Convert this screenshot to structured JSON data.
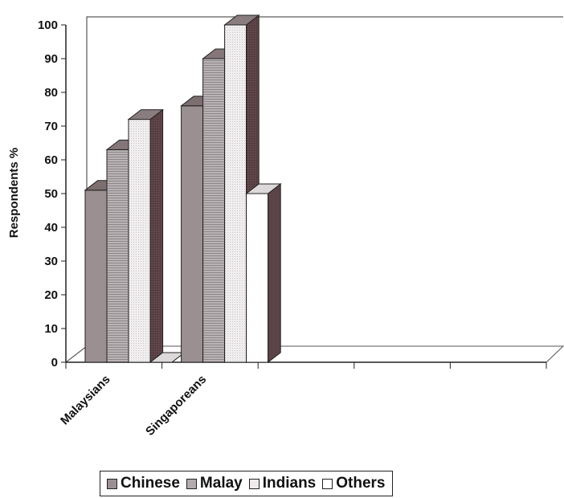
{
  "chart_data": {
    "type": "bar",
    "style": "3d-clustered",
    "ylabel": "Respondents %",
    "ylim": [
      0,
      100
    ],
    "ytick_step": 10,
    "grid": false,
    "legend_position": "bottom",
    "categories": [
      "Malaysians",
      "Singaporeans",
      "",
      "",
      ""
    ],
    "series": [
      {
        "name": "Chinese",
        "color": "#9a9092",
        "values": [
          51,
          76,
          null,
          null,
          null
        ]
      },
      {
        "name": "Malay",
        "color": "#b2acae",
        "values": [
          63,
          90,
          null,
          null,
          null
        ]
      },
      {
        "name": "Indians",
        "color": "#efebed",
        "values": [
          72,
          100,
          null,
          null,
          null
        ]
      },
      {
        "name": "Others",
        "color": "#ffffff",
        "values": [
          0,
          50,
          null,
          null,
          null
        ]
      }
    ]
  }
}
